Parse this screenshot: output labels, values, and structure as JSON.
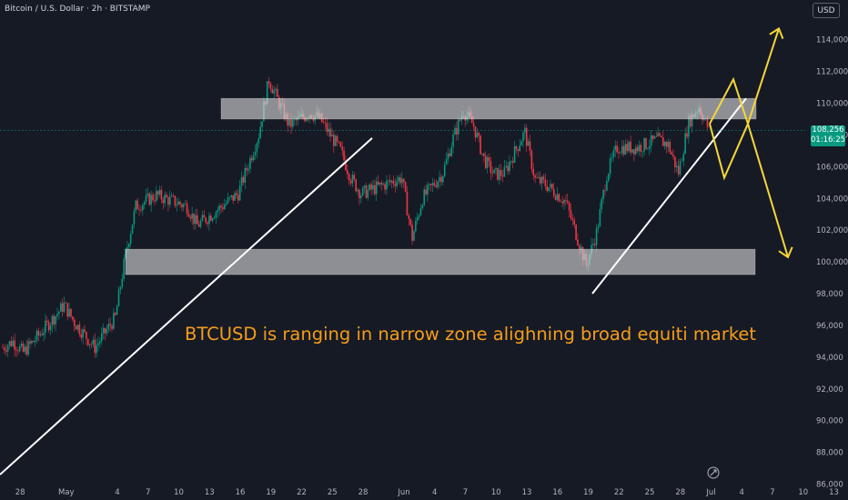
{
  "header": {
    "symbol_title": "Bitcoin / U.S. Dollar · 2h · BITSTAMP",
    "currency_button": "USD"
  },
  "price_label": {
    "price": "108,256",
    "countdown": "01:16:25",
    "color": "#089981"
  },
  "annotation": {
    "text": "BTCUSD is ranging in narrow zone alighning broad equiti market",
    "color": "#f59d1a"
  },
  "colors": {
    "background": "#161a25",
    "up_candle": "#089981",
    "down_candle": "#f23645",
    "zone_fill": "#d9d9d9",
    "trendline": "#ffffff",
    "projection": "#f5d63a"
  },
  "chart_data": {
    "type": "candlestick",
    "title": "Bitcoin / U.S. Dollar · 2h · BITSTAMP",
    "ylim": [
      85000,
      116500
    ],
    "y_ticks": [
      86000,
      88000,
      90000,
      92000,
      94000,
      96000,
      98000,
      100000,
      102000,
      104000,
      106000,
      108000,
      110000,
      112000,
      114000
    ],
    "x_ticks": [
      "28",
      "May",
      "4",
      "7",
      "10",
      "13",
      "16",
      "19",
      "22",
      "25",
      "28",
      "Jun",
      "4",
      "7",
      "10",
      "13",
      "16",
      "19",
      "22",
      "25",
      "28",
      "Jul",
      "4",
      "7",
      "10",
      "13"
    ],
    "grid": false,
    "price_path": [
      {
        "x": "Apr 26",
        "y": 94600
      },
      {
        "x": "Apr 27",
        "y": 95000
      },
      {
        "x": "Apr 28",
        "y": 94300
      },
      {
        "x": "Apr 29",
        "y": 95000
      },
      {
        "x": "May 1",
        "y": 96500
      },
      {
        "x": "May 2",
        "y": 97300
      },
      {
        "x": "May 3",
        "y": 96200
      },
      {
        "x": "May 5",
        "y": 94600
      },
      {
        "x": "May 7",
        "y": 96500
      },
      {
        "x": "May 8",
        "y": 100500
      },
      {
        "x": "May 9",
        "y": 103500
      },
      {
        "x": "May 11",
        "y": 104200
      },
      {
        "x": "May 14",
        "y": 103500
      },
      {
        "x": "May 15",
        "y": 102300
      },
      {
        "x": "May 17",
        "y": 103300
      },
      {
        "x": "May 19",
        "y": 104300
      },
      {
        "x": "May 21",
        "y": 108000
      },
      {
        "x": "May 22",
        "y": 111500
      },
      {
        "x": "May 23",
        "y": 110000
      },
      {
        "x": "May 24",
        "y": 108600
      },
      {
        "x": "May 26",
        "y": 109400
      },
      {
        "x": "May 27",
        "y": 109000
      },
      {
        "x": "May 29",
        "y": 107000
      },
      {
        "x": "May 30",
        "y": 105300
      },
      {
        "x": "May 31",
        "y": 104300
      },
      {
        "x": "Jun 2",
        "y": 104800
      },
      {
        "x": "Jun 4",
        "y": 105300
      },
      {
        "x": "Jun 5",
        "y": 101500
      },
      {
        "x": "Jun 6",
        "y": 104000
      },
      {
        "x": "Jun 8",
        "y": 105600
      },
      {
        "x": "Jun 9",
        "y": 107800
      },
      {
        "x": "Jun 10",
        "y": 109500
      },
      {
        "x": "Jun 11",
        "y": 108600
      },
      {
        "x": "Jun 12",
        "y": 106500
      },
      {
        "x": "Jun 13",
        "y": 105500
      },
      {
        "x": "Jun 14",
        "y": 105600
      },
      {
        "x": "Jun 16",
        "y": 108200
      },
      {
        "x": "Jun 17",
        "y": 105200
      },
      {
        "x": "Jun 18",
        "y": 104900
      },
      {
        "x": "Jun 20",
        "y": 103800
      },
      {
        "x": "Jun 22",
        "y": 99800
      },
      {
        "x": "Jun 23",
        "y": 101800
      },
      {
        "x": "Jun 24",
        "y": 105500
      },
      {
        "x": "Jun 25",
        "y": 107200
      },
      {
        "x": "Jun 27",
        "y": 107200
      },
      {
        "x": "Jun 29",
        "y": 107700
      },
      {
        "x": "Jun 30",
        "y": 107400
      },
      {
        "x": "Jul 1",
        "y": 105600
      },
      {
        "x": "Jul 2",
        "y": 108800
      },
      {
        "x": "Jul 3",
        "y": 109800
      },
      {
        "x": "Jul 4",
        "y": 108300
      }
    ],
    "range_zones": [
      {
        "name": "resistance",
        "y_low": 109000,
        "y_high": 110300
      },
      {
        "name": "support",
        "y_low": 99200,
        "y_high": 100800
      }
    ],
    "trendlines": [
      {
        "from": {
          "x": "Apr 26",
          "y": 86600
        },
        "to": {
          "x": "Jun 1",
          "y": 107800
        }
      },
      {
        "from": {
          "x": "Jun 23",
          "y": 98000
        },
        "to": {
          "x": "Jul 9",
          "y": 110300
        }
      }
    ],
    "projections": [
      {
        "name": "bullish",
        "points": [
          {
            "x": "Jul 5",
            "y": 108700
          },
          {
            "x": "Jul 6",
            "y": 111500
          },
          {
            "x": "Jul 8",
            "y": 108700
          },
          {
            "x": "Jul 11",
            "y": 114700
          }
        ]
      },
      {
        "name": "bearish",
        "points": [
          {
            "x": "Jul 5",
            "y": 108700
          },
          {
            "x": "Jul 6",
            "y": 105300
          },
          {
            "x": "Jul 8",
            "y": 108700
          },
          {
            "x": "Jul 11",
            "y": 100300
          }
        ]
      }
    ],
    "last_price": 108256
  }
}
